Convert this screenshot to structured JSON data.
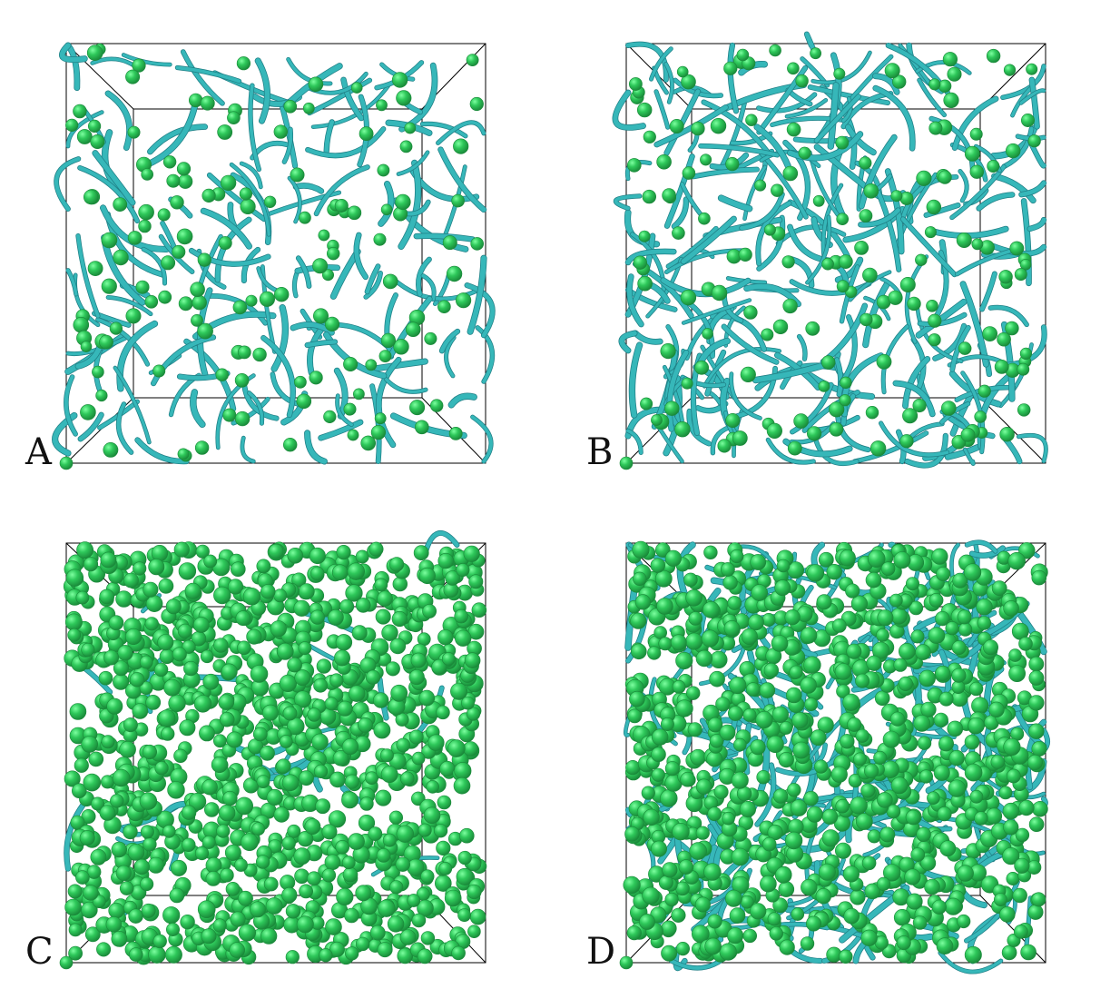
{
  "figure": {
    "panels": [
      {
        "id": "A",
        "label": "A",
        "filament_density": 0.55,
        "sphere_density": 0.45,
        "style": "sparse-filaments"
      },
      {
        "id": "B",
        "label": "B",
        "filament_density": 0.9,
        "sphere_density": 0.5,
        "style": "dense-filaments"
      },
      {
        "id": "C",
        "label": "C",
        "filament_density": 0.1,
        "sphere_density": 1.0,
        "style": "dense-spheres"
      },
      {
        "id": "D",
        "label": "D",
        "filament_density": 0.9,
        "sphere_density": 0.85,
        "style": "dense-mixed"
      }
    ],
    "colors": {
      "sphere": "#2ec85a",
      "sphere_highlight": "#7dffa0",
      "sphere_shade": "#1a8a3a",
      "filament": "#36b7b9",
      "filament_dark": "#1f7f85",
      "box": "#000000"
    }
  }
}
